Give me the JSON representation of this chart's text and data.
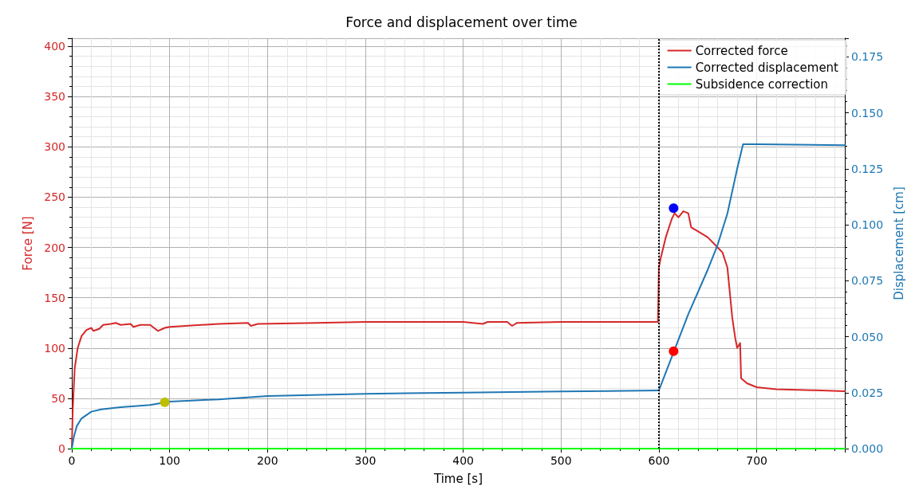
{
  "chart_data": {
    "type": "line",
    "title": "Force and displacement over time",
    "xlabel": "Time [s]",
    "ylabel": "Force [N]",
    "y2label": "Displacement [cm]",
    "xlim": [
      0,
      790
    ],
    "xticks": [
      0,
      100,
      200,
      300,
      400,
      500,
      600,
      700
    ],
    "ylim": [
      0,
      408
    ],
    "yticks": [
      0,
      50,
      100,
      150,
      200,
      250,
      300,
      350,
      400
    ],
    "y2lim": [
      0,
      0.1833
    ],
    "y2ticks": [
      {
        "value": 0,
        "label": "0.000"
      },
      {
        "value": 0.025,
        "label": "0.025"
      },
      {
        "value": 0.05,
        "label": "0.050"
      },
      {
        "value": 0.075,
        "label": "0.075"
      },
      {
        "value": 0.1,
        "label": "0.100"
      },
      {
        "value": 0.125,
        "label": "0.125"
      },
      {
        "value": 0.15,
        "label": "0.150"
      },
      {
        "value": 0.175,
        "label": "0.175"
      }
    ],
    "grid": true,
    "legend": "top right",
    "marker": "none",
    "line_style": "solid",
    "ref_lines": [
      {
        "axis": "x",
        "value": 600,
        "color": "#000000",
        "line_style": "dotted"
      }
    ],
    "series": [
      {
        "name": "Corrected force",
        "color": "#d62728",
        "x": [
          0,
          1,
          3,
          6,
          10,
          15,
          20,
          22,
          28,
          32,
          40,
          45,
          50,
          60,
          63,
          70,
          80,
          88,
          95,
          100,
          150,
          180,
          183,
          190,
          250,
          300,
          400,
          420,
          425,
          445,
          450,
          455,
          500,
          599,
          600,
          602,
          607,
          613,
          616,
          620,
          625,
          630,
          633,
          640,
          650,
          660,
          665,
          670,
          673,
          675,
          678,
          680,
          683,
          684,
          690,
          700,
          720,
          760,
          790
        ],
        "values": [
          0,
          40,
          80,
          100,
          112,
          118,
          120,
          117,
          119,
          123,
          124,
          125,
          123,
          124,
          121,
          123,
          123,
          117,
          120,
          121,
          124,
          125,
          122,
          124,
          125,
          126,
          126,
          124,
          126,
          126,
          122,
          125,
          126,
          126,
          180,
          190,
          210,
          228,
          234,
          230,
          236,
          234,
          220,
          216,
          210,
          200,
          195,
          180,
          150,
          130,
          110,
          100,
          105,
          70,
          65,
          61,
          59,
          58,
          57
        ]
      },
      {
        "name": "Corrected displacement",
        "color": "#1f77b4",
        "axis": "y2",
        "x": [
          0,
          2,
          5,
          10,
          20,
          30,
          50,
          80,
          100,
          150,
          200,
          300,
          400,
          500,
          599,
          600,
          630,
          650,
          660,
          670,
          680,
          686,
          700,
          790
        ],
        "values": [
          0,
          0.005,
          0.01,
          0.0135,
          0.0165,
          0.0175,
          0.0185,
          0.0195,
          0.021,
          0.022,
          0.0235,
          0.0245,
          0.025,
          0.0255,
          0.026,
          0.026,
          0.06,
          0.08,
          0.091,
          0.105,
          0.125,
          0.136,
          0.136,
          0.1355
        ]
      },
      {
        "name": "Subsidence correction",
        "color": "#00ff00",
        "x": [
          0,
          790
        ],
        "values": [
          0,
          0
        ]
      },
      {
        "type": "scatter",
        "color": "#bfbf00",
        "marker": "circle",
        "axis": "y2",
        "x": [
          95
        ],
        "values": [
          0.0207
        ]
      },
      {
        "type": "scatter",
        "color": "#0000ff",
        "marker": "circle",
        "x": [
          615
        ],
        "values": [
          239
        ]
      },
      {
        "type": "scatter",
        "color": "#ff0000",
        "marker": "circle",
        "axis": "y2",
        "x": [
          615
        ],
        "values": [
          0.0435
        ]
      }
    ]
  }
}
